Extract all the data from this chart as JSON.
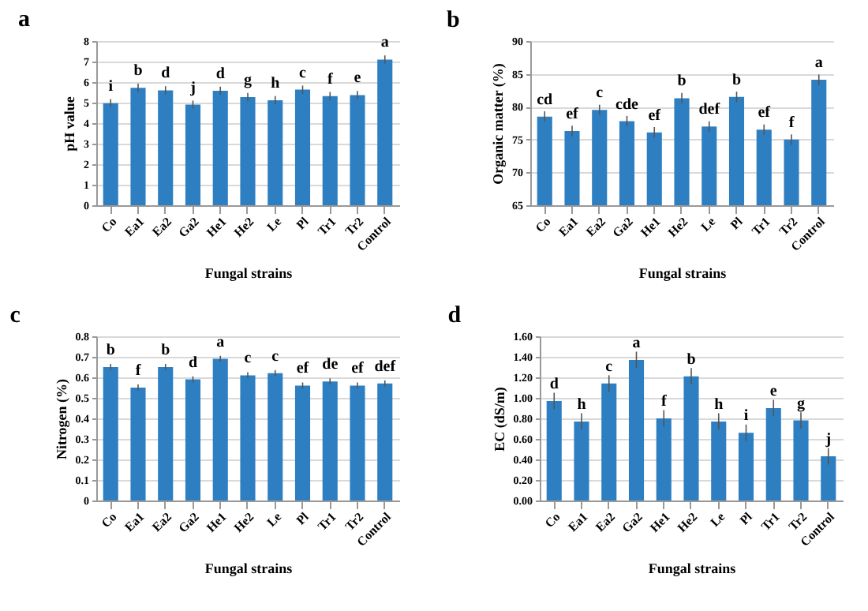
{
  "chart_data": [
    {
      "type": "bar",
      "title": "a",
      "xlabel": "Fungal strains",
      "ylabel": "pH value",
      "categories": [
        "Co",
        "Ea1",
        "Ea2",
        "Ga2",
        "He1",
        "He2",
        "Le",
        "Pl",
        "Tr1",
        "Tr2",
        "Control"
      ],
      "series": [
        {
          "color": "#2e7fc2",
          "values": [
            4.97,
            5.72,
            5.6,
            4.9,
            5.58,
            5.27,
            5.12,
            5.63,
            5.32,
            5.37,
            7.1
          ],
          "errors": [
            0.2,
            0.2,
            0.2,
            0.2,
            0.2,
            0.2,
            0.2,
            0.2,
            0.2,
            0.2,
            0.2
          ]
        }
      ],
      "ylim": [
        0,
        8
      ],
      "yticks": [
        0,
        1,
        2,
        3,
        4,
        5,
        6,
        7,
        8
      ],
      "grid": "y",
      "annotations": [
        {
          "text": "i",
          "x": "Co",
          "y": 4.97
        },
        {
          "text": "b",
          "x": "Ea1",
          "y": 5.72
        },
        {
          "text": "d",
          "x": "Ea2",
          "y": 5.6
        },
        {
          "text": "j",
          "x": "Ga2",
          "y": 4.9
        },
        {
          "text": "d",
          "x": "He1",
          "y": 5.58
        },
        {
          "text": "g",
          "x": "He2",
          "y": 5.27
        },
        {
          "text": "h",
          "x": "Le",
          "y": 5.12
        },
        {
          "text": "c",
          "x": "Pl",
          "y": 5.63
        },
        {
          "text": "f",
          "x": "Tr1",
          "y": 5.32
        },
        {
          "text": "e",
          "x": "Tr2",
          "y": 5.37
        },
        {
          "text": "a",
          "x": "Control",
          "y": 7.1
        }
      ]
    },
    {
      "type": "bar",
      "title": "b",
      "xlabel": "Fungal strains",
      "ylabel": "Organic matter (%)",
      "categories": [
        "Co",
        "Ea1",
        "Ea2",
        "Ga2",
        "He1",
        "He2",
        "Le",
        "Pl",
        "Tr1",
        "Tr2",
        "Control"
      ],
      "series": [
        {
          "color": "#2e7fc2",
          "values": [
            78.5,
            76.3,
            79.5,
            77.8,
            76.1,
            81.3,
            77.0,
            81.5,
            76.5,
            75.0,
            84.1
          ],
          "errors": [
            0.8,
            0.8,
            0.8,
            0.8,
            0.8,
            0.8,
            0.8,
            0.8,
            0.8,
            0.8,
            0.8
          ]
        }
      ],
      "ylim": [
        65,
        90
      ],
      "yticks": [
        65,
        70,
        75,
        80,
        85,
        90
      ],
      "grid": "y",
      "annotations": [
        {
          "text": "cd",
          "x": "Co",
          "y": 78.5
        },
        {
          "text": "ef",
          "x": "Ea1",
          "y": 76.3
        },
        {
          "text": "c",
          "x": "Ea2",
          "y": 79.5
        },
        {
          "text": "cde",
          "x": "Ga2",
          "y": 77.8
        },
        {
          "text": "ef",
          "x": "He1",
          "y": 76.1
        },
        {
          "text": "b",
          "x": "He2",
          "y": 81.3
        },
        {
          "text": "def",
          "x": "Le",
          "y": 77.0
        },
        {
          "text": "b",
          "x": "Pl",
          "y": 81.5
        },
        {
          "text": "ef",
          "x": "Tr1",
          "y": 76.5
        },
        {
          "text": "f",
          "x": "Tr2",
          "y": 75.0
        },
        {
          "text": "a",
          "x": "Control",
          "y": 84.1
        }
      ]
    },
    {
      "type": "bar",
      "title": "c",
      "xlabel": "Fungal strains",
      "ylabel": "Nitrogen (%)",
      "categories": [
        "Co",
        "Ea1",
        "Ea2",
        "Ga2",
        "He1",
        "He2",
        "Le",
        "Pl",
        "Tr1",
        "Tr2",
        "Control"
      ],
      "series": [
        {
          "color": "#2e7fc2",
          "values": [
            0.65,
            0.55,
            0.65,
            0.59,
            0.69,
            0.61,
            0.62,
            0.56,
            0.58,
            0.56,
            0.57
          ],
          "errors": [
            0.015,
            0.015,
            0.015,
            0.015,
            0.015,
            0.015,
            0.015,
            0.015,
            0.015,
            0.015,
            0.015
          ]
        }
      ],
      "ylim": [
        0,
        0.8
      ],
      "yticks": [
        0,
        0.1,
        0.2,
        0.3,
        0.4,
        0.5,
        0.6,
        0.7,
        0.8
      ],
      "grid": "y",
      "annotations": [
        {
          "text": "b",
          "x": "Co",
          "y": 0.65
        },
        {
          "text": "f",
          "x": "Ea1",
          "y": 0.55
        },
        {
          "text": "b",
          "x": "Ea2",
          "y": 0.65
        },
        {
          "text": "d",
          "x": "Ga2",
          "y": 0.59
        },
        {
          "text": "a",
          "x": "He1",
          "y": 0.69
        },
        {
          "text": "c",
          "x": "He2",
          "y": 0.61
        },
        {
          "text": "c",
          "x": "Le",
          "y": 0.62
        },
        {
          "text": "ef",
          "x": "Pl",
          "y": 0.56
        },
        {
          "text": "de",
          "x": "Tr1",
          "y": 0.58
        },
        {
          "text": "ef",
          "x": "Tr2",
          "y": 0.56
        },
        {
          "text": "def",
          "x": "Control",
          "y": 0.57
        }
      ]
    },
    {
      "type": "bar",
      "title": "d",
      "xlabel": "Fungal strains",
      "ylabel": "EC (dS/m)",
      "categories": [
        "Co",
        "Ea1",
        "Ea2",
        "Ga2",
        "He1",
        "He2",
        "Le",
        "Pl",
        "Tr1",
        "Tr2",
        "Control"
      ],
      "series": [
        {
          "color": "#2e7fc2",
          "values": [
            0.97,
            0.77,
            1.14,
            1.37,
            0.8,
            1.21,
            0.77,
            0.66,
            0.9,
            0.78,
            0.43
          ],
          "errors": [
            0.08,
            0.08,
            0.08,
            0.08,
            0.08,
            0.08,
            0.08,
            0.08,
            0.08,
            0.08,
            0.08
          ]
        }
      ],
      "ylim": [
        0,
        1.6
      ],
      "yticks": [
        {
          "value": 0,
          "label": "0.00"
        },
        {
          "value": 0.2,
          "label": "0.20"
        },
        {
          "value": 0.4,
          "label": "0.40"
        },
        {
          "value": 0.6,
          "label": "0.60"
        },
        {
          "value": 0.8,
          "label": "0.80"
        },
        {
          "value": 1.0,
          "label": "1.00"
        },
        {
          "value": 1.2,
          "label": "1.20"
        },
        {
          "value": 1.4,
          "label": "1.40"
        },
        {
          "value": 1.6,
          "label": "1.60"
        }
      ],
      "grid": "y",
      "annotations": [
        {
          "text": "d",
          "x": "Co",
          "y": 0.97
        },
        {
          "text": "h",
          "x": "Ea1",
          "y": 0.77
        },
        {
          "text": "c",
          "x": "Ea2",
          "y": 1.14
        },
        {
          "text": "a",
          "x": "Ga2",
          "y": 1.37
        },
        {
          "text": "f",
          "x": "He1",
          "y": 0.8
        },
        {
          "text": "b",
          "x": "He2",
          "y": 1.21
        },
        {
          "text": "h",
          "x": "Le",
          "y": 0.77
        },
        {
          "text": "i",
          "x": "Pl",
          "y": 0.66
        },
        {
          "text": "e",
          "x": "Tr1",
          "y": 0.9
        },
        {
          "text": "g",
          "x": "Tr2",
          "y": 0.78
        },
        {
          "text": "j",
          "x": "Control",
          "y": 0.43
        }
      ]
    }
  ]
}
